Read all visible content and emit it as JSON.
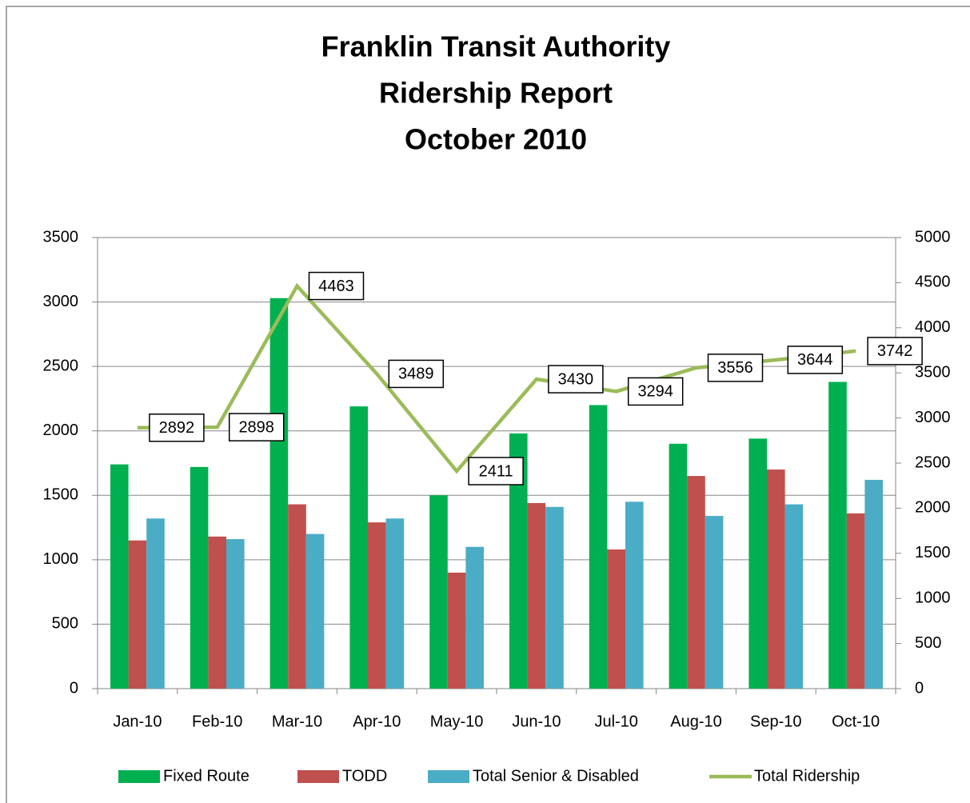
{
  "chart_data": {
    "type": "bar",
    "title": [
      "Franklin Transit Authority",
      "Ridership Report",
      "October 2010"
    ],
    "categories": [
      "Jan-10",
      "Feb-10",
      "Mar-10",
      "Apr-10",
      "May-10",
      "Jun-10",
      "Jul-10",
      "Aug-10",
      "Sep-10",
      "Oct-10"
    ],
    "series": [
      {
        "name": "Fixed Route",
        "type": "bar",
        "color": "#00b050",
        "values": [
          1740,
          1720,
          3030,
          2190,
          1500,
          1980,
          2200,
          1900,
          1940,
          2380
        ]
      },
      {
        "name": "TODD",
        "type": "bar",
        "color": "#c0504d",
        "values": [
          1150,
          1180,
          1430,
          1290,
          900,
          1440,
          1080,
          1650,
          1700,
          1360
        ]
      },
      {
        "name": "Total Senior & Disabled",
        "type": "bar",
        "color": "#4bacc6",
        "values": [
          1320,
          1160,
          1200,
          1320,
          1100,
          1410,
          1450,
          1340,
          1430,
          1620
        ]
      },
      {
        "name": "Total Ridership",
        "type": "line",
        "axis": "y2",
        "color": "#9bbb59",
        "values": [
          2892,
          2898,
          4463,
          3489,
          2411,
          3430,
          3294,
          3556,
          3644,
          3742
        ]
      }
    ],
    "ylim": [
      0,
      3500
    ],
    "yticks": [
      0,
      500,
      1000,
      1500,
      2000,
      2500,
      3000,
      3500
    ],
    "y2lim": [
      0,
      5000
    ],
    "y2ticks": [
      0,
      500,
      1000,
      1500,
      2000,
      2500,
      3000,
      3500,
      4000,
      4500,
      5000
    ],
    "grid": true,
    "legend": "bottom"
  }
}
